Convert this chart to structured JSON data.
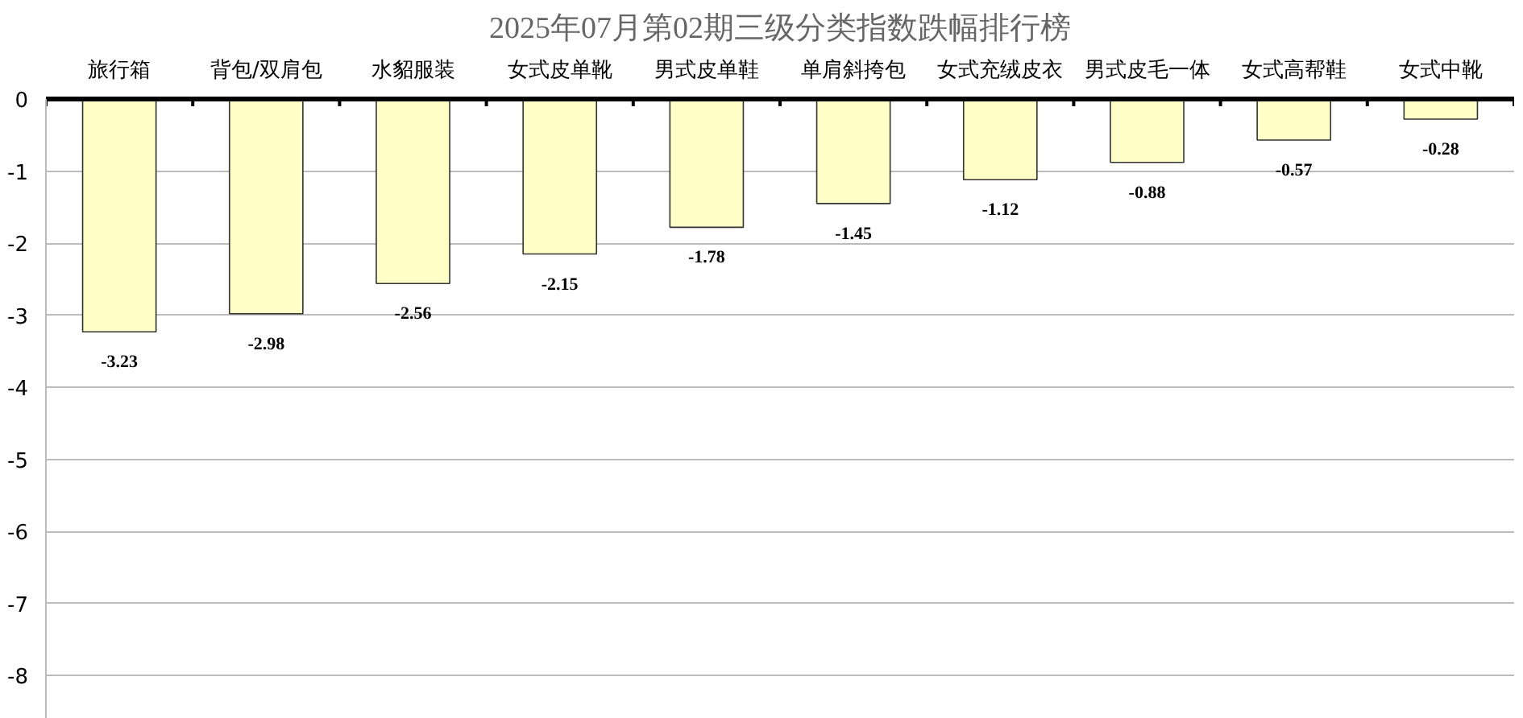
{
  "chart_data": {
    "type": "bar",
    "title": "2025年07月第02期三级分类指数跌幅排行榜",
    "categories": [
      "旅行箱",
      "背包/双肩包",
      "水貂服装",
      "女式皮单靴",
      "男式皮单鞋",
      "单肩斜挎包",
      "女式充绒皮衣",
      "男式皮毛一体",
      "女式高帮鞋",
      "女式中靴"
    ],
    "values": [
      -3.23,
      -2.98,
      -2.56,
      -2.15,
      -1.78,
      -1.45,
      -1.12,
      -0.88,
      -0.57,
      -0.28
    ],
    "color": "#ffffc8",
    "ylim": [
      -8.6,
      0
    ],
    "yticks": [
      0,
      -1,
      -2,
      -3,
      -4,
      -5,
      -6,
      -7,
      -8
    ],
    "grid": "y",
    "data_labels": true
  }
}
